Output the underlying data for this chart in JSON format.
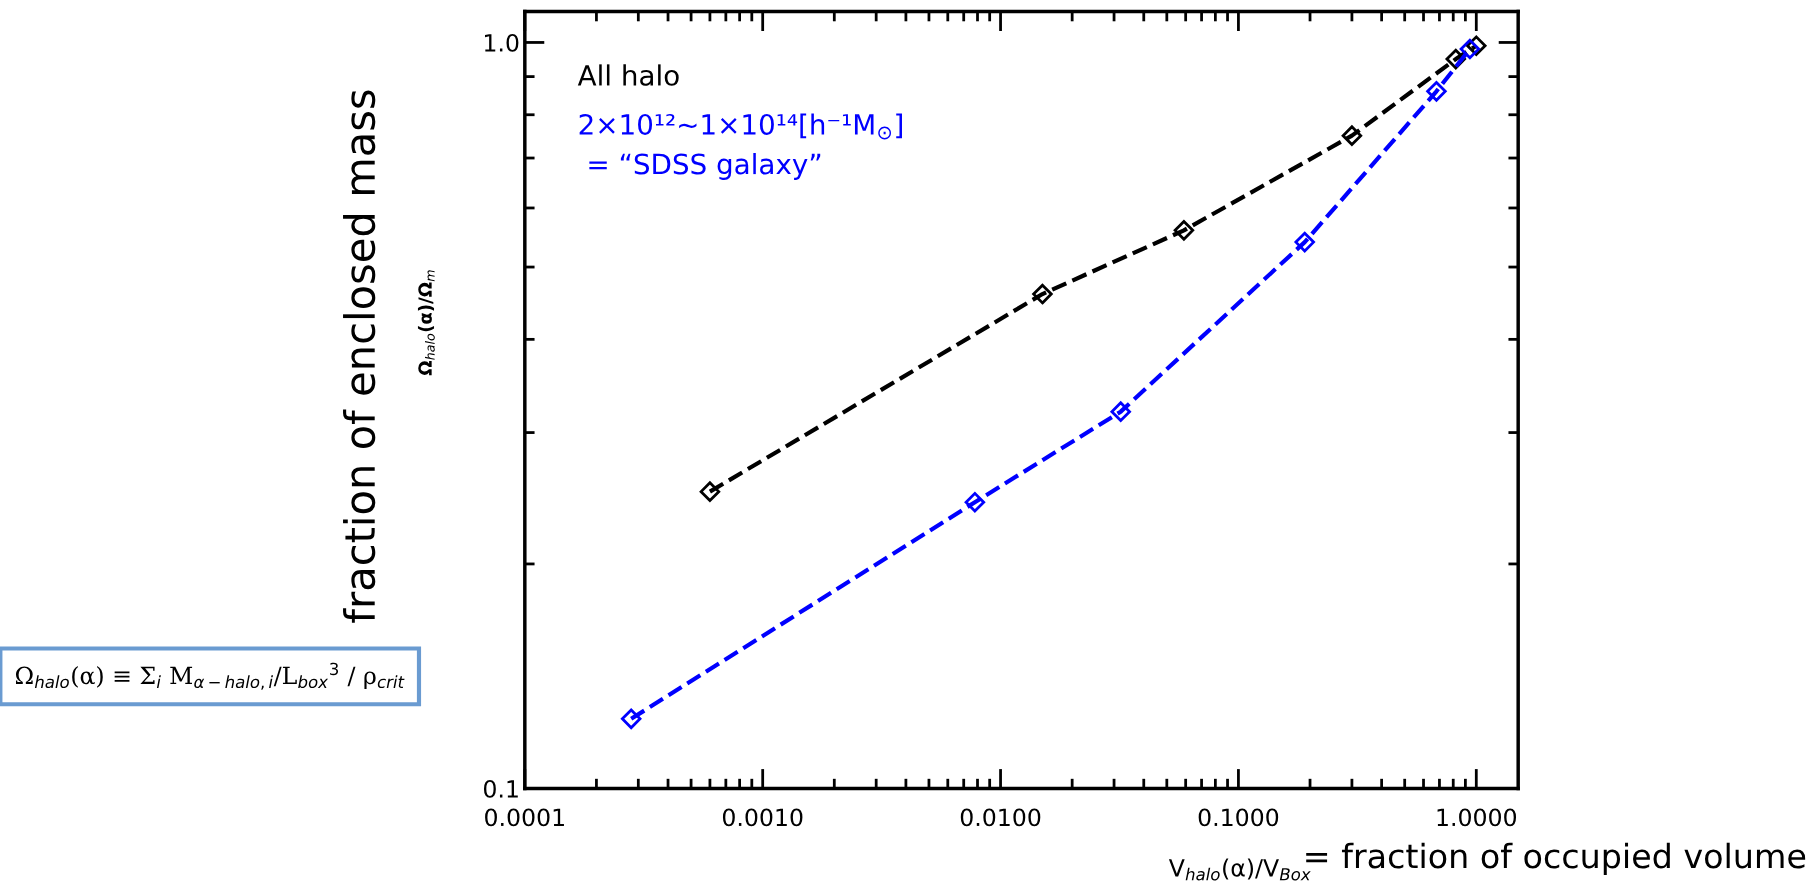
{
  "chart_data": {
    "type": "line",
    "xlabel": "V$_{halo}$(α)/V$_{Box}$",
    "ylabel": "Ω$_{halo}$(α)/Ω$_{m}$",
    "annotations": [
      "fraction of enclosed mass",
      "= fraction of occupied volume",
      "Ω$_{halo}$(α) ≡ Σ$_{i}$ M$_{α−halo,i}$/L$_{box}$$^{3}$ / ρ$_{crit}$"
    ],
    "series": [
      {
        "name": "All halo",
        "color": "#000000",
        "x": [
          0.0006,
          0.015,
          0.059,
          0.3,
          0.82,
          1.0
        ],
        "values": [
          0.25,
          0.46,
          0.56,
          0.75,
          0.95,
          0.99
        ]
      },
      {
        "name": "2×10¹²~1×10¹⁴[h⁻¹M$_{⊙}$]\n = “SDSS galaxy”",
        "color": "#0000ff",
        "x": [
          0.00028,
          0.0078,
          0.032,
          0.19,
          0.68,
          0.94
        ],
        "values": [
          0.124,
          0.242,
          0.32,
          0.54,
          0.86,
          0.98
        ]
      }
    ],
    "log": "xy",
    "xlim": [
      0.0001,
      1.5
    ],
    "ylim": [
      0.1,
      1.1
    ],
    "xticks": [
      {
        "value": 0.0001,
        "label": "0.0001"
      },
      {
        "value": 0.001,
        "label": "0.0010"
      },
      {
        "value": 0.01,
        "label": "0.0100"
      },
      {
        "value": 0.1,
        "label": "0.1000"
      },
      {
        "value": 1,
        "label": "1.0000"
      }
    ],
    "yticks": [
      {
        "value": 0.1,
        "label": "0.1"
      },
      {
        "value": 1,
        "label": "1.0"
      }
    ],
    "marker": "diamond",
    "line_style": "dashed",
    "grid": false,
    "legend": "top left"
  }
}
